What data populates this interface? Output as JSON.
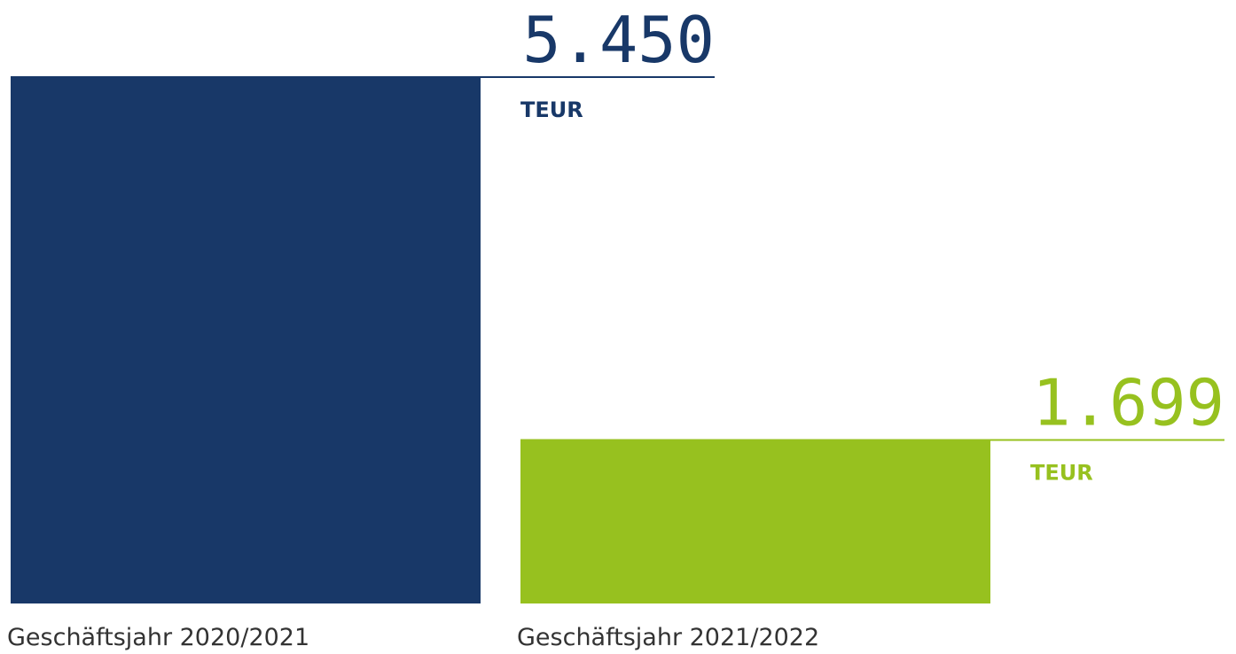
{
  "chart_data": {
    "type": "bar",
    "categories": [
      "Geschäftsjahr 2020/2021",
      "Geschäftsjahr 2021/2022"
    ],
    "values": [
      5450,
      1699
    ],
    "value_labels": [
      "5.450",
      "1.699"
    ],
    "unit": "TEUR",
    "colors": [
      "#183868",
      "#97c11f"
    ]
  }
}
